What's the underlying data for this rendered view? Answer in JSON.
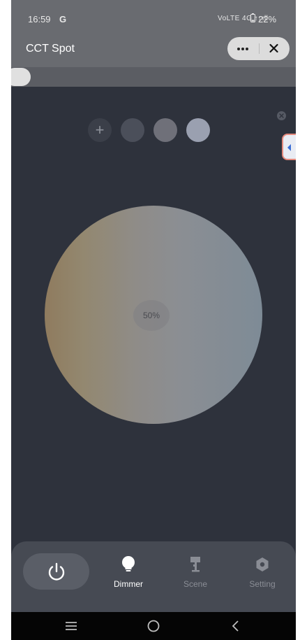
{
  "status_bar": {
    "time": "16:59",
    "g_badge": "G",
    "network": "VoLTE 4G ↑↓ıll",
    "battery": "22%"
  },
  "header": {
    "title": "CCT Spot",
    "more_icon": "more-dots-icon",
    "close_icon": "close-x-icon"
  },
  "controls": {
    "brightness_slider_level": 0,
    "preset_add_label": "+",
    "presets": [
      "#4b4f5a",
      "#6f7079",
      "#9aa0b0"
    ]
  },
  "wheel": {
    "brightness_label": "50%",
    "warm_color": "#8f7b5e",
    "cool_color": "#7e8b96"
  },
  "bottom_nav": {
    "power_icon": "power-icon",
    "tabs": [
      {
        "label": "Dimmer",
        "icon": "bulb-icon",
        "active": true
      },
      {
        "label": "Scene",
        "icon": "lamp-icon",
        "active": false
      },
      {
        "label": "Setting",
        "icon": "hexagon-gear-icon",
        "active": false
      }
    ]
  },
  "colors": {
    "background": "#2e323c",
    "header": "#696b70",
    "panel": "#464a53",
    "active_tab": "#ffffff",
    "inactive_tab": "#8a8d95"
  }
}
